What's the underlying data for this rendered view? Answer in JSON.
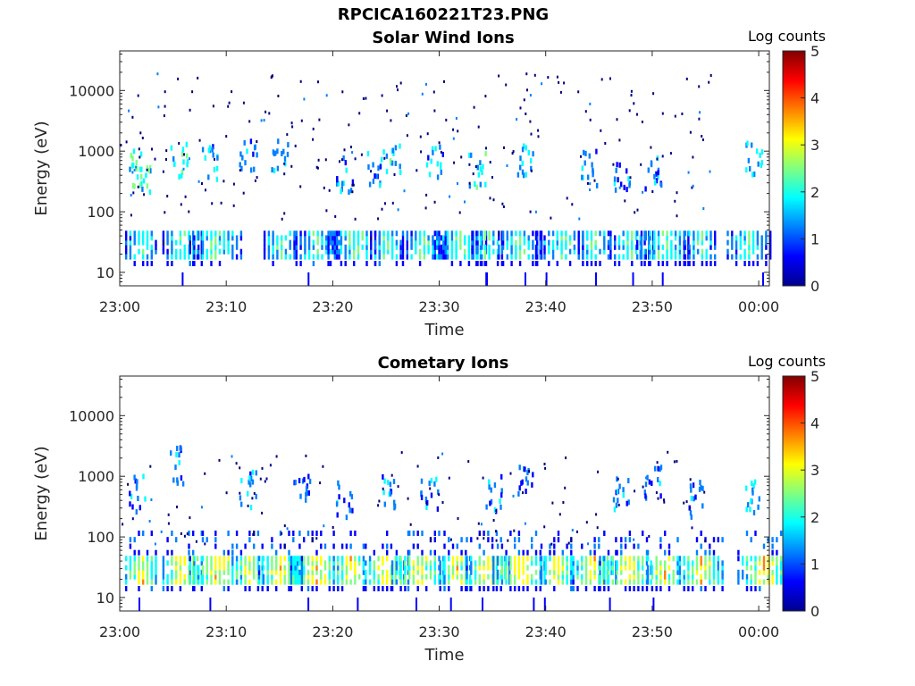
{
  "figure": {
    "title": "RPCICA160221T23.PNG"
  },
  "colormap": [
    "#00008f",
    "#0000ff",
    "#0080ff",
    "#00ffff",
    "#80ff80",
    "#ffff00",
    "#ff8000",
    "#ff0000",
    "#800000"
  ],
  "chart_data": [
    {
      "type": "heatmap",
      "title": "Solar Wind Ions",
      "xlabel": "Time",
      "ylabel": "Energy (eV)",
      "yscale": "log",
      "xlim": [
        "23:00",
        "00:01"
      ],
      "ylim": [
        6,
        45000
      ],
      "xticks": [
        "23:00",
        "23:10",
        "23:20",
        "23:30",
        "23:40",
        "23:50",
        "00:00"
      ],
      "yticks": [
        "10",
        "100",
        "1000",
        "10000"
      ],
      "colorbar": {
        "label": "Log counts",
        "range": [
          0,
          5
        ],
        "ticks": [
          "0",
          "1",
          "2",
          "3",
          "4",
          "5"
        ]
      },
      "low_energy_band_centers_min": [
        2,
        6,
        9,
        15,
        18.5,
        22,
        25,
        28.5,
        32,
        34.5,
        37.5,
        41.5,
        44.5,
        48,
        51,
        54.5,
        59
      ],
      "mid_energy_bursts_min": [
        [
          1.5,
          500,
          2.1
        ],
        [
          2,
          400,
          2.0
        ],
        [
          5.5,
          700,
          1.8
        ],
        [
          8.5,
          600,
          1.4
        ],
        [
          12,
          800,
          1.2
        ],
        [
          15,
          900,
          1.3
        ],
        [
          21,
          400,
          1.3
        ],
        [
          24,
          500,
          1.3
        ],
        [
          25.5,
          700,
          1.7
        ],
        [
          29.5,
          600,
          1.5
        ],
        [
          33.5,
          500,
          1.7
        ],
        [
          38,
          700,
          1.6
        ],
        [
          44,
          500,
          1.3
        ],
        [
          47,
          400,
          1.2
        ],
        [
          50,
          400,
          1.3
        ],
        [
          59.5,
          800,
          1.5
        ]
      ]
    },
    {
      "type": "heatmap",
      "title": "Cometary Ions",
      "xlabel": "Time",
      "ylabel": "Energy (eV)",
      "yscale": "log",
      "xlim": [
        "23:00",
        "00:01"
      ],
      "ylim": [
        6,
        45000
      ],
      "xticks": [
        "23:00",
        "23:10",
        "23:20",
        "23:30",
        "23:40",
        "23:50",
        "00:00"
      ],
      "yticks": [
        "10",
        "100",
        "1000",
        "10000"
      ],
      "colorbar": {
        "label": "Log counts",
        "range": [
          0,
          5
        ],
        "ticks": [
          "0",
          "1",
          "2",
          "3",
          "4",
          "5"
        ]
      },
      "low_energy_band_centers_min": [
        2,
        6,
        9,
        12,
        15,
        18.5,
        21.5,
        25,
        28,
        31.5,
        34.5,
        37.5,
        41,
        44.5,
        47.5,
        51,
        54.5,
        60.5
      ],
      "mid_energy_bursts_min": [
        [
          1.5,
          500,
          1.2
        ],
        [
          5.5,
          1500,
          1.1
        ],
        [
          12,
          600,
          1.3
        ],
        [
          17,
          500,
          1.0
        ],
        [
          21,
          400,
          1.2
        ],
        [
          25,
          500,
          1.4
        ],
        [
          29,
          500,
          1.2
        ],
        [
          35,
          500,
          1.3
        ],
        [
          38,
          1000,
          1.1
        ],
        [
          47,
          500,
          1.2
        ],
        [
          50,
          800,
          1.0
        ],
        [
          54,
          400,
          1.1
        ],
        [
          59.5,
          500,
          1.5
        ]
      ]
    }
  ]
}
